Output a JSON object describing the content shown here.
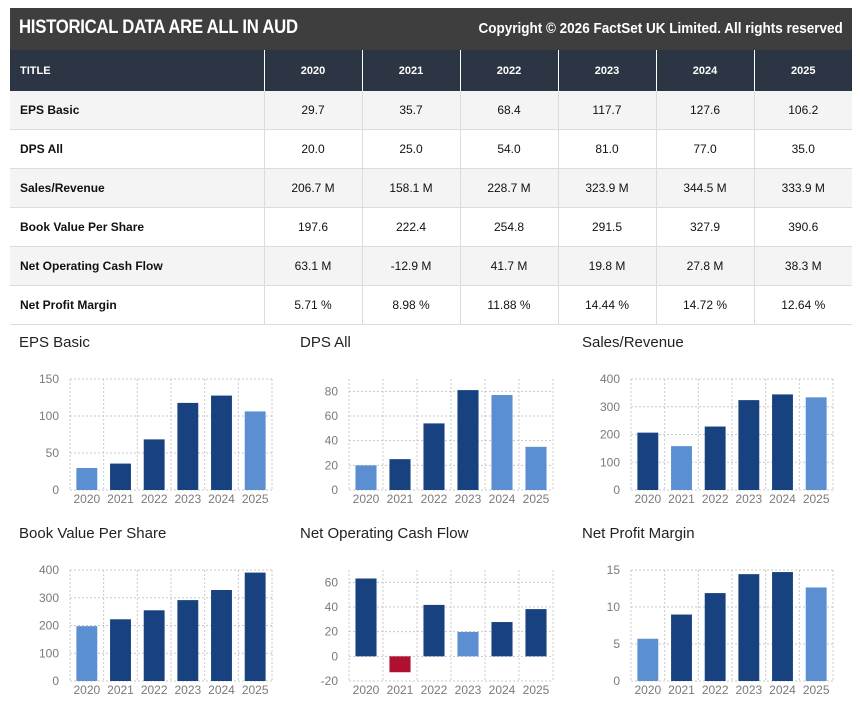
{
  "header": {
    "title": "HISTORICAL DATA ARE ALL IN AUD",
    "copyright": "Copyright © 2026 FactSet UK Limited. All rights reserved"
  },
  "table": {
    "columns": [
      "TITLE",
      "2020",
      "2021",
      "2022",
      "2023",
      "2024",
      "2025"
    ],
    "rows": [
      {
        "label": "EPS Basic",
        "values": [
          "29.7",
          "35.7",
          "68.4",
          "117.7",
          "127.6",
          "106.2"
        ]
      },
      {
        "label": "DPS All",
        "values": [
          "20.0",
          "25.0",
          "54.0",
          "81.0",
          "77.0",
          "35.0"
        ]
      },
      {
        "label": "Sales/Revenue",
        "values": [
          "206.7 M",
          "158.1 M",
          "228.7 M",
          "323.9 M",
          "344.5 M",
          "333.9 M"
        ]
      },
      {
        "label": "Book Value Per Share",
        "values": [
          "197.6",
          "222.4",
          "254.8",
          "291.5",
          "327.9",
          "390.6"
        ]
      },
      {
        "label": "Net Operating Cash Flow",
        "values": [
          "63.1 M",
          "-12.9 M",
          "41.7 M",
          "19.8 M",
          "27.8 M",
          "38.3 M"
        ]
      },
      {
        "label": "Net Profit Margin",
        "values": [
          "5.71 %",
          "8.98 %",
          "11.88 %",
          "14.44 %",
          "14.72 %",
          "12.64 %"
        ]
      }
    ]
  },
  "colors": {
    "header_bar": "#3e3e3e",
    "table_header": "#2c3543",
    "bar_dark": "#17427f",
    "bar_light": "#5b8fd2",
    "bar_negative": "#b01030"
  },
  "chart_data": [
    {
      "type": "bar",
      "title": "EPS Basic",
      "categories": [
        "2020",
        "2021",
        "2022",
        "2023",
        "2024",
        "2025"
      ],
      "values": [
        29.7,
        35.7,
        68.4,
        117.7,
        127.6,
        106.2
      ],
      "ylim": [
        0,
        150
      ],
      "yticks": [
        0,
        50,
        100,
        150
      ],
      "highlight": [
        0,
        5
      ],
      "grid": true
    },
    {
      "type": "bar",
      "title": "DPS All",
      "categories": [
        "2020",
        "2021",
        "2022",
        "2023",
        "2024",
        "2025"
      ],
      "values": [
        20.0,
        25.0,
        54.0,
        81.0,
        77.0,
        35.0
      ],
      "ylim": [
        0,
        90
      ],
      "yticks": [
        0,
        20,
        40,
        60,
        80
      ],
      "highlight": [
        0,
        4,
        5
      ],
      "grid": true
    },
    {
      "type": "bar",
      "title": "Sales/Revenue",
      "categories": [
        "2020",
        "2021",
        "2022",
        "2023",
        "2024",
        "2025"
      ],
      "values": [
        206.7,
        158.1,
        228.7,
        323.9,
        344.5,
        333.9
      ],
      "ylim": [
        0,
        400
      ],
      "yticks": [
        0,
        100,
        200,
        300,
        400
      ],
      "highlight": [
        1,
        5
      ],
      "grid": true
    },
    {
      "type": "bar",
      "title": "Book Value Per Share",
      "categories": [
        "2020",
        "2021",
        "2022",
        "2023",
        "2024",
        "2025"
      ],
      "values": [
        197.6,
        222.4,
        254.8,
        291.5,
        327.9,
        390.6
      ],
      "ylim": [
        0,
        400
      ],
      "yticks": [
        0,
        100,
        200,
        300,
        400
      ],
      "highlight": [
        0
      ],
      "grid": true
    },
    {
      "type": "bar",
      "title": "Net Operating Cash Flow",
      "categories": [
        "2020",
        "2021",
        "2022",
        "2023",
        "2024",
        "2025"
      ],
      "values": [
        63.1,
        -12.9,
        41.7,
        19.8,
        27.8,
        38.3
      ],
      "ylim": [
        -20,
        70
      ],
      "yticks": [
        -20,
        0,
        20,
        40,
        60
      ],
      "highlight": [
        3
      ],
      "negative": [
        1
      ],
      "grid": true
    },
    {
      "type": "bar",
      "title": "Net Profit Margin",
      "categories": [
        "2020",
        "2021",
        "2022",
        "2023",
        "2024",
        "2025"
      ],
      "values": [
        5.71,
        8.98,
        11.88,
        14.44,
        14.72,
        12.64
      ],
      "ylim": [
        0,
        15
      ],
      "yticks": [
        0,
        5,
        10,
        15
      ],
      "highlight": [
        0,
        5
      ],
      "grid": true
    }
  ]
}
